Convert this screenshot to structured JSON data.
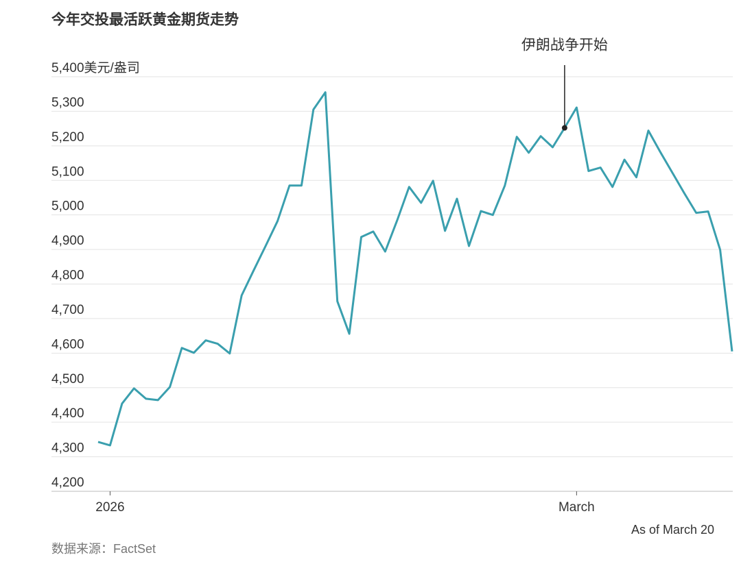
{
  "chart_data": {
    "type": "line",
    "title": "今年交投最活跃黄金期货走势",
    "y_unit": "美元/盎司",
    "categories": [
      null,
      "2026",
      null,
      null,
      null,
      null,
      null,
      null,
      null,
      null,
      null,
      null,
      null,
      null,
      null,
      null,
      null,
      null,
      null,
      null,
      null,
      null,
      null,
      null,
      null,
      null,
      null,
      null,
      null,
      null,
      null,
      null,
      null,
      null,
      null,
      null,
      null,
      null,
      null,
      null,
      "March",
      null,
      null,
      null,
      null,
      null,
      null,
      null,
      null,
      null,
      null,
      null,
      null,
      null
    ],
    "series": [
      {
        "name": "黄金期货",
        "color": "#3a9fae",
        "values": [
          4343,
          4333,
          4454,
          4498,
          4468,
          4464,
          4502,
          4615,
          4601,
          4637,
          4627,
          4599,
          4767,
          4839,
          4910,
          4982,
          5085,
          5085,
          5305,
          5355,
          4750,
          4656,
          4936,
          4952,
          4894,
          4984,
          5081,
          5035,
          5099,
          4954,
          5047,
          4910,
          5011,
          5000,
          5085,
          5226,
          5180,
          5228,
          5196,
          5252,
          5311,
          5127,
          5137,
          5081,
          5160,
          5109,
          5244,
          5182,
          5123,
          5063,
          5006,
          5010,
          4899,
          4605
        ]
      }
    ],
    "ylim": [
      4200,
      5400
    ],
    "yticks": [
      {
        "value": 4200,
        "label": "4,200"
      },
      {
        "value": 4300,
        "label": "4,300"
      },
      {
        "value": 4400,
        "label": "4,400"
      },
      {
        "value": 4500,
        "label": "4,500"
      },
      {
        "value": 4600,
        "label": "4,600"
      },
      {
        "value": 4700,
        "label": "4,700"
      },
      {
        "value": 4800,
        "label": "4,800"
      },
      {
        "value": 4900,
        "label": "4,900"
      },
      {
        "value": 5000,
        "label": "5,000"
      },
      {
        "value": 5100,
        "label": "5,100"
      },
      {
        "value": 5200,
        "label": "5,200"
      },
      {
        "value": 5300,
        "label": "5,300"
      },
      {
        "value": 5400,
        "label": "5,400"
      }
    ],
    "grid": true,
    "annotations": [
      {
        "text": "伊朗战争开始",
        "index": 39
      }
    ],
    "note": "As of March 20",
    "source": "数据来源：FactSet"
  }
}
